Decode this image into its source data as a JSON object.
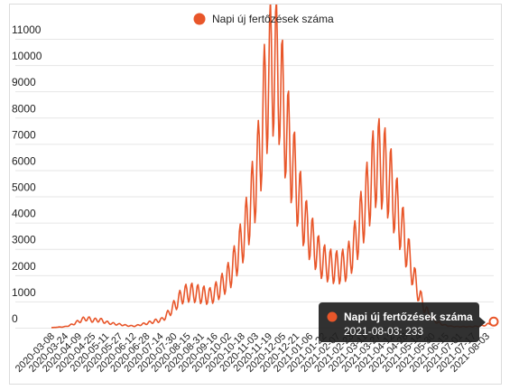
{
  "chart_data": {
    "type": "line",
    "series": [
      {
        "name": "Napi új fertőzések száma",
        "color": "#e8562a",
        "points": [
          [
            "2020-03-08",
            2
          ],
          [
            "2020-03-24",
            40
          ],
          [
            "2020-04-01",
            120
          ],
          [
            "2020-04-09",
            250
          ],
          [
            "2020-04-17",
            360
          ],
          [
            "2020-04-25",
            280
          ],
          [
            "2020-05-03",
            300
          ],
          [
            "2020-05-11",
            200
          ],
          [
            "2020-05-19",
            150
          ],
          [
            "2020-05-27",
            120
          ],
          [
            "2020-06-04",
            80
          ],
          [
            "2020-06-12",
            60
          ],
          [
            "2020-06-20",
            120
          ],
          [
            "2020-06-28",
            180
          ],
          [
            "2020-07-06",
            250
          ],
          [
            "2020-07-14",
            300
          ],
          [
            "2020-07-22",
            550
          ],
          [
            "2020-07-30",
            900
          ],
          [
            "2020-08-07",
            1250
          ],
          [
            "2020-08-15",
            1350
          ],
          [
            "2020-08-23",
            1300
          ],
          [
            "2020-08-31",
            1250
          ],
          [
            "2020-09-08",
            1200
          ],
          [
            "2020-09-16",
            1400
          ],
          [
            "2020-09-24",
            1700
          ],
          [
            "2020-10-02",
            2100
          ],
          [
            "2020-10-10",
            2800
          ],
          [
            "2020-10-18",
            3600
          ],
          [
            "2020-10-26",
            4800
          ],
          [
            "2020-11-03",
            6200
          ],
          [
            "2020-11-11",
            8800
          ],
          [
            "2020-11-19",
            10100
          ],
          [
            "2020-11-27",
            9600
          ],
          [
            "2020-12-05",
            7600
          ],
          [
            "2020-12-13",
            6200
          ],
          [
            "2020-12-21",
            4800
          ],
          [
            "2020-12-29",
            3800
          ],
          [
            "2021-01-06",
            3200
          ],
          [
            "2021-01-14",
            2600
          ],
          [
            "2021-01-22",
            2400
          ],
          [
            "2021-01-30",
            2300
          ],
          [
            "2021-02-07",
            2300
          ],
          [
            "2021-02-15",
            2500
          ],
          [
            "2021-02-23",
            3200
          ],
          [
            "2021-03-03",
            4200
          ],
          [
            "2021-03-11",
            5200
          ],
          [
            "2021-03-19",
            6300
          ],
          [
            "2021-03-27",
            6200
          ],
          [
            "2021-04-04",
            5600
          ],
          [
            "2021-04-12",
            4600
          ],
          [
            "2021-04-20",
            3600
          ],
          [
            "2021-04-28",
            2500
          ],
          [
            "2021-05-06",
            1500
          ],
          [
            "2021-05-14",
            800
          ],
          [
            "2021-05-22",
            400
          ],
          [
            "2021-05-30",
            200
          ],
          [
            "2021-06-07",
            100
          ],
          [
            "2021-06-15",
            50
          ],
          [
            "2021-06-23",
            40
          ],
          [
            "2021-07-01",
            40
          ],
          [
            "2021-07-09",
            40
          ],
          [
            "2021-07-17",
            60
          ],
          [
            "2021-07-25",
            100
          ],
          [
            "2021-08-03",
            233
          ]
        ]
      }
    ],
    "x_tick_labels": [
      "2020-03-08",
      "2020-03-24",
      "2020-04-09",
      "2020-04-25",
      "2020-05-11",
      "2020-05-27",
      "2020-06-12",
      "2020-06-28",
      "2020-07-14",
      "2020-07-30",
      "2020-08-15",
      "2020-08-31",
      "2020-09-16",
      "2020-10-02",
      "2020-10-18",
      "2020-11-03",
      "2020-11-19",
      "2020-12-05",
      "2020-12-21",
      "2021-01-06",
      "2021-01-22",
      "2021-02-07",
      "2021-02-23",
      "2021-03-11",
      "2021-03-27",
      "2021-04-12",
      "2021-04-28",
      "2021-05-14",
      "2021-05-30",
      "2021-06-15",
      "2021-07-01",
      "2021-07-17",
      "2021-08-03"
    ],
    "x_range": [
      "2020-03-08",
      "2021-08-03"
    ],
    "y_ticks": [
      0,
      1000,
      2000,
      3000,
      4000,
      5000,
      6000,
      7000,
      8000,
      9000,
      10000,
      11000
    ],
    "ylim": [
      0,
      11000
    ],
    "legend_position": "top-center",
    "grid": "horizontal",
    "title": "",
    "xlabel": "",
    "ylabel": "",
    "tooltip": {
      "series_label": "Napi új fertőzések száma",
      "text": "2021-08-03: 233"
    }
  }
}
